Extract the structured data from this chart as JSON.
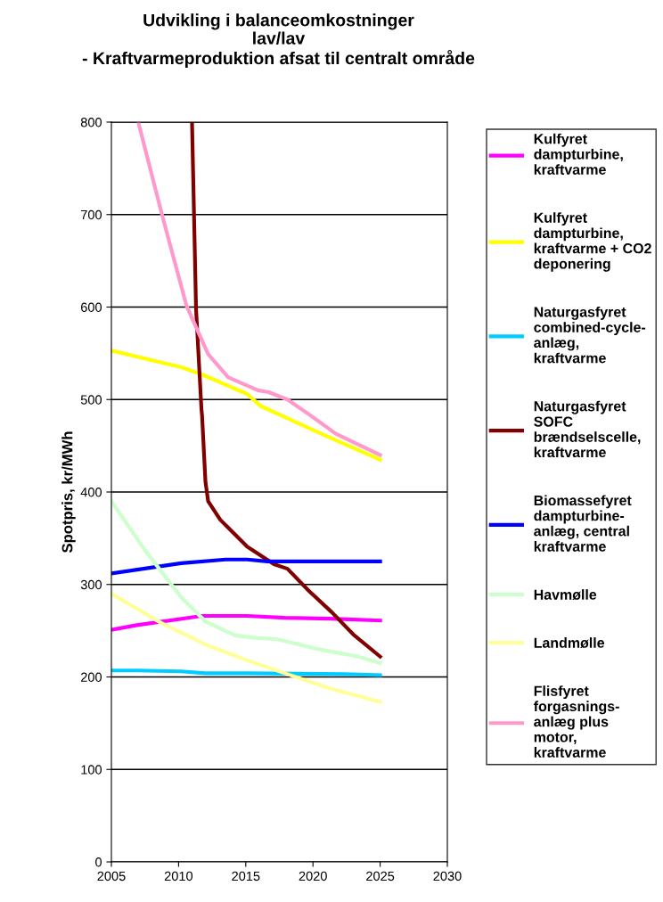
{
  "chart_data": {
    "type": "line",
    "title": "Udvikling i balanceomkostninger\nlav/lav\n- Kraftvarmeproduktion afsat til centralt område",
    "ylabel": "Spotpris, kr/MWh",
    "xlim": [
      2005,
      2030
    ],
    "xticks": [
      2005,
      2010,
      2015,
      2020,
      2025,
      2030
    ],
    "ylim": [
      0,
      800
    ],
    "yticks": [
      0,
      100,
      200,
      300,
      400,
      500,
      600,
      700,
      800
    ],
    "grid": "y",
    "legend": "right",
    "marker": "none",
    "line_style": "solid",
    "series": [
      {
        "name": "Kulfyret\ndampturbine,\nkraftvarme",
        "color": "#ff00ff",
        "x": [
          2005,
          2006.9,
          2011.75,
          2015.1,
          2017.9,
          2021.3,
          2025
        ],
        "values": [
          251,
          256,
          266,
          266,
          264,
          263,
          261
        ]
      },
      {
        "name": "Kulfyret\ndampturbine,\nkraftvarme + CO2\ndeponering",
        "color": "#ffff00",
        "x": [
          2005,
          2010.2,
          2011.75,
          2015.1,
          2016.1,
          2017.9,
          2019.7,
          2021.4,
          2025
        ],
        "values": [
          553,
          535,
          527,
          506,
          493,
          481,
          469,
          458,
          435
        ]
      },
      {
        "name": "Naturgasfyret\ncombined-cycle-\nanlæg,\nkraftvarme",
        "color": "#00ccff",
        "x": [
          2005,
          2006.9,
          2010.2,
          2012,
          2015.1,
          2022.4,
          2025
        ],
        "values": [
          207,
          207,
          206,
          204,
          204,
          203,
          202
        ]
      },
      {
        "name": "Naturgasfyret\nSOFC\nbrændselscelle,\nkraftvarme",
        "color": "#800000",
        "x": [
          2011.0,
          2011.3,
          2011.7,
          2011.75,
          2012.0,
          2012.2,
          2013.1,
          2015.1,
          2017.1,
          2018.1,
          2019.7,
          2021.4,
          2023,
          2025
        ],
        "values": [
          800,
          598,
          490,
          482,
          411,
          390,
          370,
          341,
          322,
          317,
          293,
          270,
          246,
          222
        ]
      },
      {
        "name": "Biomassefyret\ndampturbine-\nanlæg, central\nkraftvarme",
        "color": "#0000ff",
        "x": [
          2005,
          2010.2,
          2013.5,
          2015.1,
          2016.6,
          2025
        ],
        "values": [
          312,
          323,
          327,
          327,
          325,
          325
        ]
      },
      {
        "name": "Havmølle",
        "color": "#ccffcc",
        "x": [
          2005,
          2007.5,
          2010.2,
          2012,
          2014.2,
          2015.9,
          2017.3,
          2020.1,
          2023.4,
          2025
        ],
        "values": [
          390,
          337,
          286,
          260,
          245,
          242,
          241,
          231,
          222,
          215
        ]
      },
      {
        "name": "Landmølle",
        "color": "#ffff99",
        "x": [
          2005,
          2008.5,
          2012,
          2015.1,
          2017.9,
          2021.4,
          2025
        ],
        "values": [
          290,
          260,
          235,
          218,
          204,
          187,
          173
        ]
      },
      {
        "name": "Flisfyret\nforgasnings-\nanlæg plus\nmotor,\nkraftvarme",
        "color": "#ff99cc",
        "x": [
          2007.0,
          2008.8,
          2010.6,
          2012.2,
          2013.7,
          2015.9,
          2016.7,
          2018.1,
          2019.7,
          2021.7,
          2025
        ],
        "values": [
          800,
          698,
          601,
          549,
          524,
          510,
          508,
          500,
          484,
          463,
          440
        ]
      }
    ]
  }
}
